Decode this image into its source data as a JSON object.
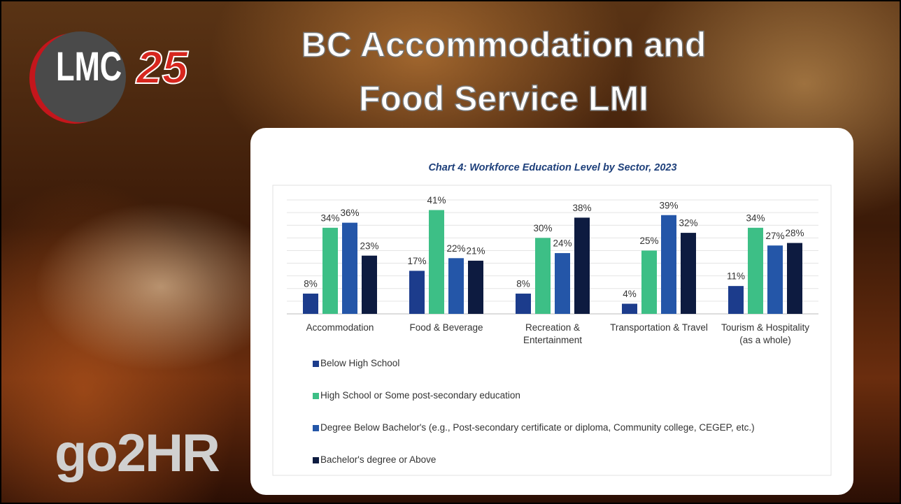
{
  "slide": {
    "title_line_1": "BC Accommodation and",
    "title_line_2": "Food Service LMI",
    "logo_lmc": "LMC",
    "logo_number": "25",
    "logo_go2hr": "go2HR"
  },
  "chart_data": {
    "type": "bar",
    "title": "Chart 4: Workforce Education Level by Sector, 2023",
    "categories": [
      "Accommodation",
      "Food & Beverage",
      "Recreation & Entertainment",
      "Transportation & Travel",
      "Tourism & Hospitality (as a whole)"
    ],
    "series": [
      {
        "name": "Below High School",
        "color": "#1c3c8c",
        "values": [
          8,
          17,
          8,
          4,
          11
        ],
        "value_labels": [
          "8%",
          "17%",
          "8%",
          "4%",
          "11%"
        ]
      },
      {
        "name": "High School or Some post-secondary education",
        "color": "#3dbf86",
        "values": [
          34,
          41,
          30,
          25,
          34
        ],
        "value_labels": [
          "34%",
          "41%",
          "30%",
          "25%",
          "34%"
        ]
      },
      {
        "name": "Degree Below Bachelor's (e.g., Post-secondary certificate or diploma, Community college, CEGEP, etc.)",
        "color": "#2456a8",
        "values": [
          36,
          22,
          24,
          39,
          27
        ],
        "value_labels": [
          "36%",
          "22%",
          "24%",
          "39%",
          "27%"
        ]
      },
      {
        "name": "Bachelor's degree or Above",
        "color": "#0d1b40",
        "values": [
          23,
          21,
          38,
          32,
          28
        ],
        "value_labels": [
          "23%",
          "21%",
          "38%",
          "32%",
          "28%"
        ]
      }
    ],
    "ylim": [
      0,
      45
    ],
    "yticks": [
      0,
      5,
      10,
      15,
      20,
      25,
      30,
      35,
      40,
      45
    ],
    "grid": true
  }
}
